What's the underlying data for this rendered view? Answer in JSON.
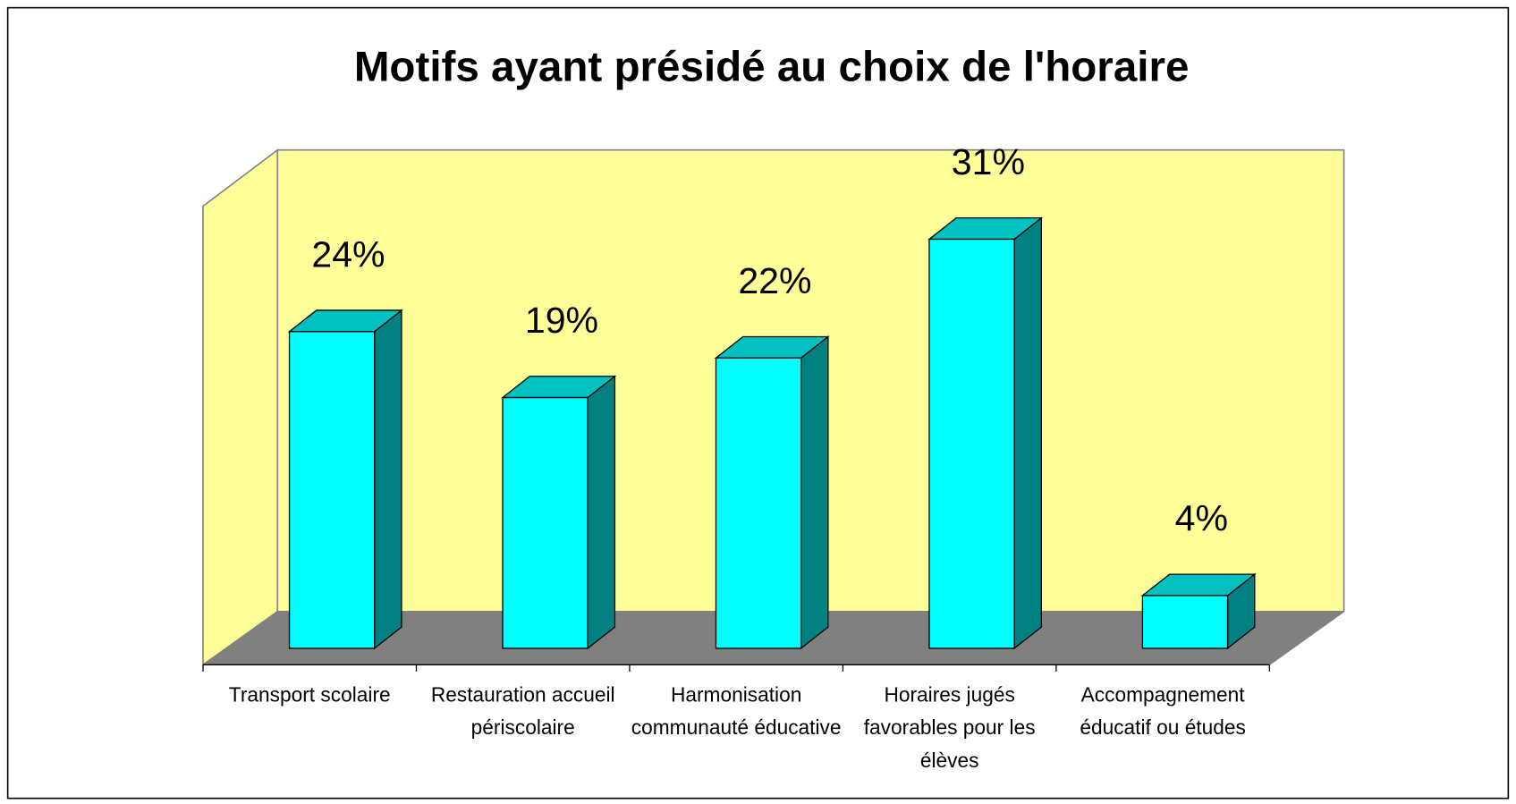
{
  "chart_data": {
    "type": "bar3d",
    "title": "Motifs ayant présidé au choix de l'horaire",
    "categories": [
      "Transport scolaire",
      "Restauration accueil périscolaire",
      "Harmonisation communauté éducative",
      "Horaires jugés favorables pour les élèves",
      "Accompagnement éducatif ou études"
    ],
    "values": [
      24,
      19,
      22,
      31,
      4
    ],
    "value_labels": [
      "24%",
      "19%",
      "22%",
      "31%",
      "4%"
    ],
    "color": "#00ffff",
    "ylim": [
      0,
      36
    ]
  }
}
